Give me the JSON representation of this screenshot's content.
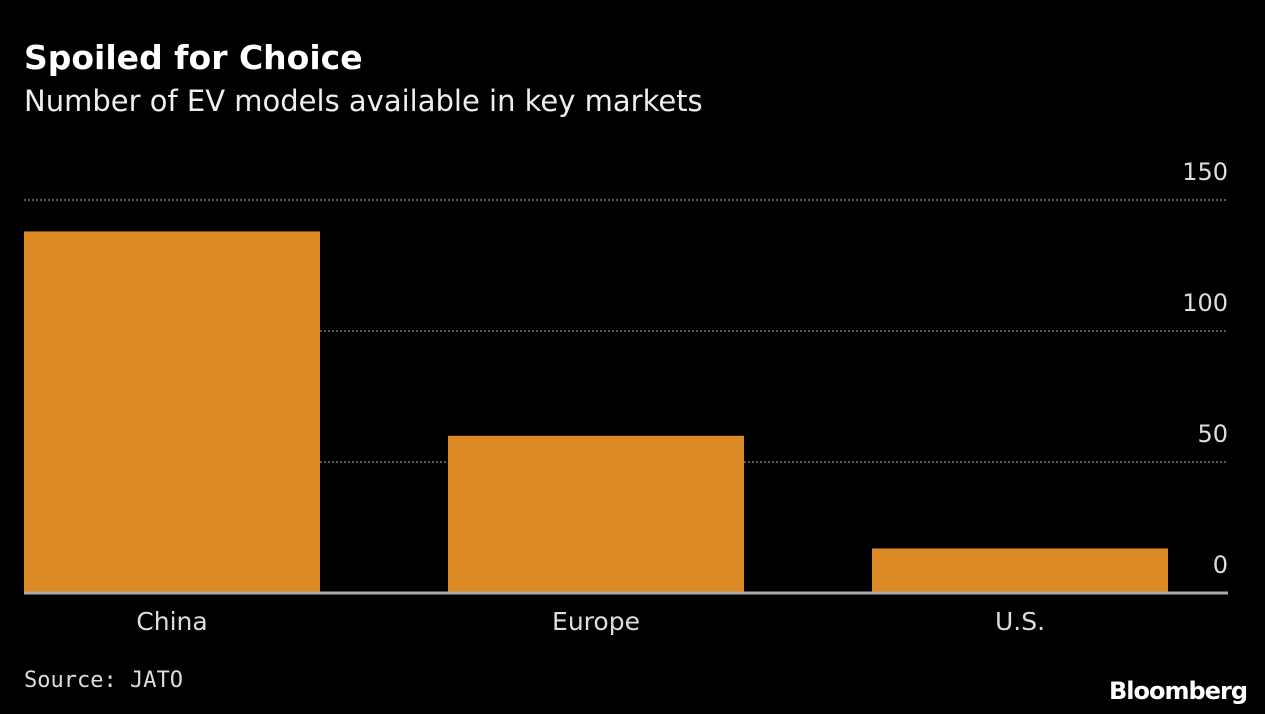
{
  "title": "Spoiled for Choice",
  "subtitle": "Number of EV models available in key markets",
  "source": "Source: JATO",
  "logo": "Bloomberg",
  "chart_data": {
    "type": "bar",
    "categories": [
      "China",
      "Europe",
      "U.S."
    ],
    "values": [
      138,
      60,
      17
    ],
    "ylim": [
      0,
      150
    ],
    "yticks": [
      0,
      50,
      100,
      150
    ],
    "grid": true,
    "y_axis_side": "right",
    "bar_color": "#DB8A24",
    "title": "Spoiled for Choice",
    "xlabel": "",
    "ylabel": ""
  }
}
